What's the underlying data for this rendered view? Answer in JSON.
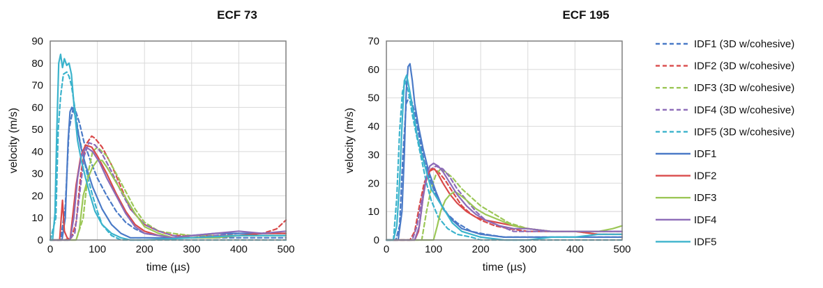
{
  "chart_data": [
    {
      "type": "line",
      "title": "ECF 73",
      "xlabel": "time (µs)",
      "ylabel": "velocity (m/s)",
      "xlim": [
        0,
        500
      ],
      "ylim": [
        0,
        90
      ],
      "xticks": [
        0,
        100,
        200,
        300,
        400,
        500
      ],
      "yticks": [
        0,
        10,
        20,
        30,
        40,
        50,
        60,
        70,
        80,
        90
      ],
      "grid": true,
      "series": [
        {
          "name": "IDF1 (3D w/cohesive)",
          "color": "#4a7ac7",
          "dashed": true,
          "x": [
            0,
            10,
            22,
            32,
            40,
            50,
            62,
            72,
            85,
            100,
            120,
            140,
            160,
            180,
            200,
            230,
            260,
            300,
            350,
            400,
            450,
            500
          ],
          "y": [
            0,
            0,
            0,
            15,
            50,
            61,
            53,
            44,
            36,
            28,
            20,
            13,
            8,
            5,
            3,
            2,
            1,
            1,
            1,
            1,
            1,
            1
          ]
        },
        {
          "name": "IDF2 (3D w/cohesive)",
          "color": "#d94a4a",
          "dashed": true,
          "x": [
            0,
            30,
            45,
            55,
            65,
            75,
            88,
            95,
            110,
            130,
            150,
            170,
            200,
            230,
            260,
            300,
            350,
            400,
            450,
            480,
            500
          ],
          "y": [
            0,
            0,
            1,
            8,
            30,
            43,
            47,
            46,
            42,
            34,
            24,
            14,
            7,
            4,
            2,
            2,
            2,
            2,
            3,
            5,
            9
          ]
        },
        {
          "name": "IDF3 (3D w/cohesive)",
          "color": "#9cc757",
          "dashed": true,
          "x": [
            0,
            55,
            70,
            80,
            90,
            100,
            120,
            140,
            160,
            180,
            200,
            230,
            260,
            300,
            350,
            400,
            450,
            500
          ],
          "y": [
            0,
            0,
            10,
            30,
            40,
            42,
            38,
            30,
            22,
            14,
            8,
            4,
            3,
            2,
            2,
            2,
            2,
            2
          ]
        },
        {
          "name": "IDF4 (3D w/cohesive)",
          "color": "#8c6bb8",
          "dashed": true,
          "x": [
            0,
            40,
            52,
            62,
            72,
            82,
            95,
            110,
            130,
            150,
            170,
            200,
            230,
            260,
            300,
            350,
            400,
            450,
            500
          ],
          "y": [
            0,
            0,
            3,
            20,
            38,
            44,
            43,
            39,
            31,
            22,
            14,
            7,
            4,
            2,
            1,
            2,
            3,
            3,
            3
          ]
        },
        {
          "name": "IDF5 (3D w/cohesive)",
          "color": "#3bb3cc",
          "dashed": true,
          "x": [
            0,
            12,
            17,
            22,
            28,
            35,
            40,
            45,
            52,
            60,
            70,
            80,
            90,
            100,
            110,
            130,
            150,
            200,
            300,
            400,
            500
          ],
          "y": [
            0,
            10,
            50,
            65,
            75,
            76,
            74,
            70,
            60,
            48,
            38,
            28,
            20,
            13,
            7,
            2,
            0,
            0,
            0,
            0,
            0
          ]
        },
        {
          "name": "IDF1",
          "color": "#4a7ac7",
          "dashed": false,
          "x": [
            0,
            25,
            32,
            38,
            42,
            46,
            52,
            58,
            65,
            75,
            90,
            110,
            130,
            150,
            170,
            200,
            230,
            260,
            300,
            350,
            400,
            450,
            500
          ],
          "y": [
            0,
            0,
            10,
            45,
            58,
            60,
            57,
            50,
            42,
            34,
            24,
            14,
            7,
            3,
            1,
            1,
            1,
            1,
            2,
            3,
            3,
            3,
            3
          ]
        },
        {
          "name": "IDF2",
          "color": "#d94a4a",
          "dashed": false,
          "x": [
            0,
            20,
            26,
            30,
            36,
            42,
            55,
            65,
            75,
            88,
            100,
            120,
            140,
            160,
            180,
            200,
            230,
            260,
            300,
            350,
            400,
            450,
            500
          ],
          "y": [
            0,
            0,
            18,
            4,
            1,
            0,
            25,
            38,
            43,
            42,
            38,
            30,
            21,
            13,
            7,
            4,
            2,
            1,
            1,
            1,
            2,
            3,
            3
          ]
        },
        {
          "name": "IDF3",
          "color": "#9cc757",
          "dashed": false,
          "x": [
            0,
            55,
            62,
            70,
            80,
            90,
            100,
            110,
            120,
            140,
            160,
            180,
            200,
            230,
            260,
            300,
            350,
            400,
            450,
            500
          ],
          "y": [
            0,
            0,
            5,
            20,
            28,
            33,
            36,
            36,
            33,
            26,
            19,
            12,
            6,
            3,
            1,
            1,
            1,
            2,
            2,
            2
          ]
        },
        {
          "name": "IDF4",
          "color": "#8c6bb8",
          "dashed": false,
          "x": [
            0,
            42,
            50,
            58,
            66,
            76,
            90,
            105,
            120,
            140,
            160,
            180,
            200,
            230,
            260,
            300,
            350,
            400,
            450,
            500
          ],
          "y": [
            0,
            0,
            10,
            28,
            38,
            42,
            40,
            35,
            28,
            20,
            12,
            6,
            3,
            2,
            1,
            2,
            3,
            4,
            3,
            4
          ]
        },
        {
          "name": "IDF5",
          "color": "#3bb3cc",
          "dashed": false,
          "x": [
            0,
            5,
            10,
            14,
            18,
            22,
            26,
            30,
            35,
            40,
            45,
            50,
            58,
            66,
            75,
            85,
            95,
            110,
            130,
            150,
            170,
            200,
            300,
            400,
            500
          ],
          "y": [
            0,
            0,
            12,
            50,
            80,
            84,
            78,
            82,
            79,
            80,
            75,
            62,
            45,
            36,
            28,
            20,
            13,
            7,
            3,
            1,
            0,
            0,
            1,
            2,
            2
          ]
        }
      ]
    },
    {
      "type": "line",
      "title": "ECF 195",
      "xlabel": "time (µs)",
      "ylabel": "velocity (m/s)",
      "xlim": [
        0,
        500
      ],
      "ylim": [
        0,
        70
      ],
      "xticks": [
        0,
        100,
        200,
        300,
        400,
        500
      ],
      "yticks": [
        0,
        10,
        20,
        30,
        40,
        50,
        60,
        70
      ],
      "grid": true,
      "series": [
        {
          "name": "IDF1 (3D w/cohesive)",
          "color": "#4a7ac7",
          "dashed": true,
          "x": [
            0,
            20,
            28,
            35,
            42,
            50,
            60,
            70,
            80,
            95,
            110,
            130,
            150,
            180,
            210,
            250,
            300,
            350,
            400,
            450,
            500
          ],
          "y": [
            0,
            0,
            5,
            30,
            48,
            51,
            45,
            36,
            28,
            20,
            14,
            9,
            6,
            3,
            2,
            1,
            1,
            1,
            1,
            1,
            1
          ]
        },
        {
          "name": "IDF2 (3D w/cohesive)",
          "color": "#d94a4a",
          "dashed": true,
          "x": [
            0,
            50,
            60,
            70,
            80,
            90,
            100,
            110,
            125,
            140,
            160,
            180,
            200,
            230,
            260,
            300,
            350,
            400,
            450,
            500
          ],
          "y": [
            0,
            0,
            3,
            12,
            20,
            24,
            25,
            24,
            21,
            17,
            12,
            9,
            7,
            5,
            4,
            3,
            3,
            3,
            3,
            3
          ]
        },
        {
          "name": "IDF3 (3D w/cohesive)",
          "color": "#9cc757",
          "dashed": true,
          "x": [
            0,
            75,
            85,
            95,
            105,
            115,
            125,
            140,
            160,
            180,
            200,
            230,
            260,
            300,
            350,
            400,
            450,
            500
          ],
          "y": [
            0,
            0,
            10,
            18,
            23,
            25,
            24,
            22,
            18,
            15,
            12,
            9,
            6,
            4,
            3,
            3,
            2,
            2
          ]
        },
        {
          "name": "IDF4 (3D w/cohesive)",
          "color": "#8c6bb8",
          "dashed": true,
          "x": [
            0,
            55,
            65,
            75,
            85,
            95,
            105,
            120,
            135,
            150,
            170,
            190,
            210,
            240,
            270,
            300,
            350,
            400,
            450,
            500
          ],
          "y": [
            0,
            0,
            5,
            14,
            22,
            25,
            26,
            25,
            22,
            18,
            14,
            10,
            7,
            5,
            3,
            3,
            3,
            3,
            3,
            3
          ]
        },
        {
          "name": "IDF5 (3D w/cohesive)",
          "color": "#3bb3cc",
          "dashed": true,
          "x": [
            0,
            15,
            22,
            28,
            34,
            40,
            47,
            55,
            65,
            75,
            85,
            95,
            110,
            130,
            150,
            180,
            200,
            300,
            400,
            500
          ],
          "y": [
            0,
            0,
            15,
            38,
            52,
            56,
            52,
            44,
            36,
            28,
            20,
            14,
            8,
            4,
            2,
            1,
            0,
            0,
            0,
            0
          ]
        },
        {
          "name": "IDF1",
          "color": "#4a7ac7",
          "dashed": false,
          "x": [
            0,
            25,
            33,
            38,
            42,
            46,
            50,
            55,
            60,
            68,
            78,
            90,
            105,
            120,
            140,
            160,
            180,
            200,
            250,
            300,
            350,
            400,
            450,
            500
          ],
          "y": [
            0,
            0,
            10,
            30,
            52,
            61,
            62,
            56,
            48,
            40,
            32,
            24,
            17,
            11,
            7,
            4,
            3,
            2,
            1,
            1,
            1,
            1,
            1,
            1
          ]
        },
        {
          "name": "IDF2",
          "color": "#d94a4a",
          "dashed": false,
          "x": [
            0,
            60,
            68,
            74,
            80,
            88,
            95,
            102,
            110,
            120,
            135,
            150,
            170,
            190,
            210,
            240,
            270,
            300,
            350,
            400,
            450,
            500
          ],
          "y": [
            0,
            0,
            3,
            10,
            18,
            23,
            25,
            25,
            23,
            20,
            16,
            13,
            10,
            8,
            7,
            6,
            5,
            4,
            3,
            3,
            2,
            2
          ]
        },
        {
          "name": "IDF3",
          "color": "#9cc757",
          "dashed": false,
          "x": [
            0,
            100,
            108,
            115,
            125,
            135,
            145,
            155,
            170,
            190,
            210,
            240,
            270,
            300,
            350,
            400,
            450,
            480,
            500
          ],
          "y": [
            0,
            0,
            5,
            10,
            14,
            16,
            17,
            16,
            14,
            11,
            9,
            7,
            5,
            4,
            3,
            3,
            3,
            4,
            5
          ]
        },
        {
          "name": "IDF4",
          "color": "#8c6bb8",
          "dashed": false,
          "x": [
            0,
            60,
            70,
            78,
            85,
            92,
            100,
            110,
            120,
            135,
            150,
            170,
            190,
            210,
            240,
            270,
            300,
            350,
            400,
            450,
            500
          ],
          "y": [
            0,
            0,
            5,
            15,
            22,
            26,
            27,
            26,
            24,
            20,
            16,
            12,
            9,
            7,
            5,
            4,
            4,
            3,
            3,
            3,
            3
          ]
        },
        {
          "name": "IDF5",
          "color": "#3bb3cc",
          "dashed": false,
          "x": [
            0,
            15,
            22,
            28,
            33,
            38,
            43,
            50,
            58,
            66,
            75,
            85,
            95,
            110,
            125,
            140,
            160,
            180,
            200,
            250,
            300,
            350,
            400,
            450,
            500
          ],
          "y": [
            0,
            0,
            5,
            20,
            40,
            56,
            58,
            52,
            44,
            36,
            30,
            24,
            18,
            14,
            10,
            6,
            3,
            2,
            1,
            0,
            0,
            1,
            1,
            2,
            2
          ]
        }
      ]
    }
  ]
}
